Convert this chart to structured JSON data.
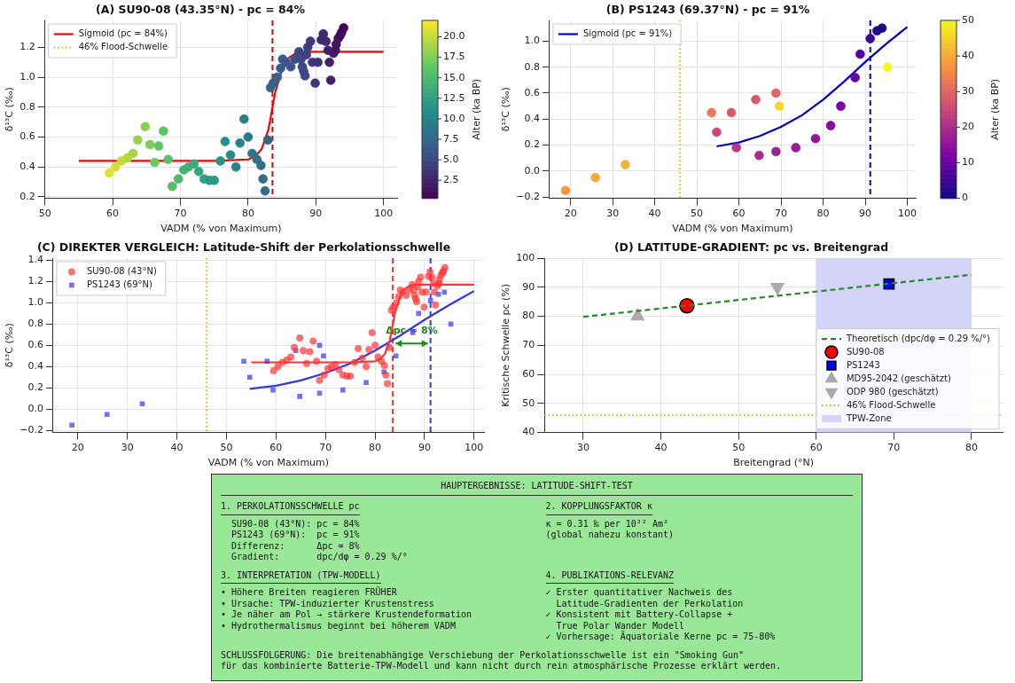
{
  "chart_data": [
    {
      "type": "scatter",
      "title": "(A) SU90-08 (43.35°N) - pc = 84%",
      "xlabel": "VADM (% von Maximum)",
      "ylabel": "δ¹³C (‰)",
      "clabel": "Alter (ka BP)",
      "xlim": [
        50,
        102
      ],
      "xticks": [
        50,
        60,
        70,
        80,
        90,
        100
      ],
      "ylim": [
        0.19,
        1.38
      ],
      "yticks": [
        0.2,
        0.4,
        0.6,
        0.8,
        {
          "value": 1,
          "label": "1.0"
        },
        1.2
      ],
      "clim": [
        0.3,
        22
      ],
      "cticks": [
        2.5,
        {
          "value": 5,
          "label": "5.0"
        },
        7.5,
        {
          "value": 10,
          "label": "10.0"
        },
        12.5,
        {
          "value": 15,
          "label": "15.0"
        },
        17.5,
        {
          "value": 20,
          "label": "20.0"
        }
      ],
      "grid": true,
      "legend": "top left",
      "series": [
        {
          "type": "scatter",
          "marker": "circle",
          "x": [
            59.5,
            60.4,
            61.3,
            62.2,
            63.0,
            63.7,
            64.8,
            65.5,
            66.2,
            66.8,
            67.5,
            68.2,
            68.8,
            69.7,
            70.5,
            71.2,
            72.0,
            72.7,
            73.5,
            74.3,
            75.0,
            75.9,
            76.6,
            77.4,
            78.2,
            78.8,
            79.4,
            80.0,
            80.6,
            81.3,
            81.9,
            82.2,
            82.5,
            82.9,
            83.3,
            83.7,
            84.3,
            84.8,
            85.1,
            85.6,
            86.3,
            86.9,
            87.5,
            87.8,
            88.0,
            88.2,
            88.4,
            88.6,
            88.8,
            89.2,
            89.5,
            89.9,
            90.3,
            90.8,
            91.1,
            91.5,
            91.8,
            92.0,
            92.2,
            92.6,
            92.9,
            93.0,
            93.3,
            93.6,
            93.8,
            94.1
          ],
          "values": [
            0.36,
            0.4,
            0.44,
            0.46,
            0.49,
            0.58,
            0.67,
            0.55,
            0.43,
            0.54,
            0.64,
            0.45,
            0.27,
            0.32,
            0.38,
            0.4,
            0.42,
            0.37,
            0.32,
            0.31,
            0.31,
            0.44,
            0.57,
            0.48,
            0.4,
            0.56,
            0.72,
            0.6,
            0.49,
            0.45,
            0.41,
            0.32,
            0.24,
            0.58,
            0.93,
            0.96,
            1.0,
            1.06,
            1.12,
            1.1,
            1.07,
            1.12,
            1.17,
            1.12,
            1.07,
            1.04,
            1.01,
            1.15,
            1.2,
            1.24,
            1.1,
            0.96,
            1.1,
            1.25,
            1.29,
            1.24,
            1.18,
            1.1,
            0.98,
            1.16,
            1.18,
            1.22,
            1.26,
            1.28,
            1.3,
            1.33
          ],
          "cvalues": [
            21,
            20.5,
            20,
            19.5,
            19,
            18.5,
            18,
            17.5,
            17,
            16.5,
            16,
            16,
            15.5,
            15,
            14.5,
            14,
            13.5,
            13,
            12.5,
            12,
            12,
            11.5,
            11,
            10.5,
            10,
            10,
            9.5,
            9,
            9,
            8.5,
            8,
            8,
            8,
            7.5,
            7.5,
            7,
            7,
            6.5,
            6.5,
            6,
            6,
            5.5,
            5,
            5,
            5,
            5,
            5,
            4.5,
            4.5,
            4,
            4,
            4,
            3.5,
            3,
            3,
            3,
            2.5,
            2.5,
            2.5,
            2,
            2,
            1.5,
            1.5,
            1,
            1,
            0.5
          ],
          "colors": [
            "#e0e130",
            "#d1df36",
            "#c2dc3b",
            "#b4d941",
            "#a5d647",
            "#96d44c",
            "#88d152",
            "#79ce58",
            "#6acb5d",
            "#5dc863",
            "#58c366",
            "#58c366",
            "#52be6a",
            "#4cb96e",
            "#47b472",
            "#41ae76",
            "#3ba97a",
            "#36a47e",
            "#309f82",
            "#2b9a85",
            "#2b9a85",
            "#259589",
            "#228f8c",
            "#24898c",
            "#27848c",
            "#27848c",
            "#297e8c",
            "#2b788c",
            "#2b788c",
            "#2e728c",
            "#306c8b",
            "#306c8b",
            "#306c8b",
            "#32678b",
            "#32678b",
            "#35618b",
            "#35618b",
            "#375b8b",
            "#375b8b",
            "#3a558b",
            "#3a558b",
            "#3b4f89",
            "#3c4784",
            "#3c4784",
            "#3c4784",
            "#3c4784",
            "#3c4784",
            "#3d407f",
            "#3d407f",
            "#3e387a",
            "#3e387a",
            "#3e387a",
            "#3f3174",
            "#40296f",
            "#40296f",
            "#40296f",
            "#40226a",
            "#40226a",
            "#40226a",
            "#411a65",
            "#411a65",
            "#421360",
            "#421360",
            "#430b5b",
            "#430b5b",
            "#440456"
          ]
        },
        {
          "type": "line",
          "name": "Sigmoid (pc = 84%)",
          "color": "#ff0000",
          "x": [
            55,
            75,
            80,
            81,
            82,
            83,
            83.6,
            84,
            85,
            86,
            87,
            88,
            100
          ],
          "values": [
            0.44,
            0.44,
            0.45,
            0.47,
            0.52,
            0.65,
            0.8,
            0.9,
            1.05,
            1.13,
            1.16,
            1.17,
            1.17
          ]
        }
      ],
      "ref_lines": [
        {
          "axis": "x",
          "value": 83.6,
          "color": "#dd0000",
          "line_style": "dashed"
        }
      ],
      "annotations": [
        "46% Flood-Schwelle"
      ]
    },
    {
      "type": "scatter",
      "title": "(B) PS1243 (69.37°N) - pc = 91%",
      "xlabel": "VADM (% von Maximum)",
      "ylabel": "δ¹³C (‰)",
      "clabel": "Alter (ka BP)",
      "xlim": [
        15,
        102
      ],
      "xticks": [
        20,
        30,
        40,
        50,
        60,
        70,
        80,
        90,
        100
      ],
      "ylim": [
        -0.21,
        1.16
      ],
      "yticks": [
        {
          "value": -0.2,
          "label": "−0.2"
        },
        {
          "value": 0,
          "label": "0.0"
        },
        0.2,
        0.4,
        0.6,
        0.8,
        {
          "value": 1,
          "label": "1.0"
        }
      ],
      "clim": [
        0,
        50
      ],
      "cticks": [
        0,
        10,
        20,
        30,
        40,
        50
      ],
      "grid": true,
      "legend": "top left",
      "series": [
        {
          "type": "scatter",
          "marker": "circle",
          "x": [
            18.8,
            25.9,
            33.0,
            53.5,
            54.7,
            58.2,
            59.4,
            64.0,
            64.8,
            68.8,
            68.8,
            69.6,
            73.5,
            78.2,
            81.8,
            84.2,
            87.6,
            88.8,
            91.2,
            92.8,
            94.0,
            95.3
          ],
          "values": [
            -0.15,
            -0.05,
            0.05,
            0.45,
            0.3,
            0.45,
            0.18,
            0.55,
            0.12,
            0.6,
            0.15,
            0.5,
            0.18,
            0.25,
            0.35,
            0.5,
            0.72,
            0.9,
            1.02,
            1.08,
            1.1,
            0.8
          ],
          "cvalues": [
            38,
            40,
            41,
            33,
            25,
            28,
            22,
            28,
            20,
            30,
            18,
            46,
            17,
            16,
            14,
            12,
            10,
            8,
            5,
            3,
            2,
            50
          ],
          "colors": [
            "#f8993f",
            "#f6a93a",
            "#f6b137",
            "#e87954",
            "#cc4778",
            "#d75a6b",
            "#b93784",
            "#d75a6b",
            "#ad2c8b",
            "#de6662",
            "#a02193",
            "#f3d92b",
            "#9a1b97",
            "#94169b",
            "#870ba2",
            "#7903a7",
            "#6704a1",
            "#55059c",
            "#3a0694",
            "#28078f",
            "#1f078c",
            "#f0f921"
          ]
        },
        {
          "type": "line",
          "name": "Sigmoid (pc = 91%)",
          "color": "#0000dd",
          "x": [
            54.7,
            60,
            65,
            70,
            75,
            80,
            85,
            90,
            95,
            100
          ],
          "values": [
            0.19,
            0.22,
            0.27,
            0.34,
            0.43,
            0.55,
            0.69,
            0.84,
            0.98,
            1.11
          ]
        }
      ],
      "ref_lines": [
        {
          "axis": "x",
          "value": 91.2,
          "color": "#0000dd",
          "line_style": "dashed"
        },
        {
          "axis": "x",
          "value": 46,
          "color": "#ffa500",
          "line_style": "dotted"
        }
      ]
    },
    {
      "type": "scatter",
      "title": "(C) DIREKTER VERGLEICH: Latitude-Shift der Perkolationsschwelle",
      "xlabel": "VADM (% von Maximum)",
      "ylabel": "δ¹³C (‰)",
      "xlim": [
        15,
        102
      ],
      "xticks": [
        20,
        30,
        40,
        50,
        60,
        70,
        80,
        90,
        100
      ],
      "ylim": [
        -0.22,
        1.42
      ],
      "yticks": [
        {
          "value": -0.2,
          "label": "−0.2"
        },
        {
          "value": 0,
          "label": "0.0"
        },
        0.2,
        0.4,
        0.6,
        0.8,
        {
          "value": 1,
          "label": "1.0"
        },
        1.2,
        1.4
      ],
      "grid": true,
      "legend": "top left",
      "series": [
        {
          "type": "scatter",
          "name": "SU90-08 (43°N)",
          "color": "#ff3333",
          "marker": "circle",
          "x": [
            59.5,
            60.4,
            61.3,
            62.2,
            63.0,
            63.7,
            64.8,
            65.5,
            66.2,
            66.8,
            67.5,
            68.2,
            68.8,
            69.7,
            70.5,
            71.2,
            72.0,
            72.7,
            73.5,
            74.3,
            75.0,
            75.9,
            76.6,
            77.4,
            78.2,
            78.8,
            79.4,
            80.0,
            80.6,
            81.3,
            81.9,
            82.2,
            82.5,
            82.9,
            83.3,
            83.7,
            84.3,
            84.8,
            85.1,
            85.6,
            86.3,
            86.9,
            87.5,
            87.8,
            88.0,
            88.2,
            88.4,
            88.6,
            88.8,
            89.2,
            89.5,
            89.9,
            90.3,
            90.8,
            91.1,
            91.5,
            91.8,
            92.0,
            92.2,
            92.6,
            92.9,
            93.0,
            93.3,
            93.6,
            93.8,
            94.1
          ],
          "values": [
            0.36,
            0.4,
            0.44,
            0.46,
            0.49,
            0.58,
            0.67,
            0.55,
            0.43,
            0.54,
            0.64,
            0.45,
            0.27,
            0.32,
            0.38,
            0.4,
            0.42,
            0.37,
            0.32,
            0.31,
            0.31,
            0.44,
            0.57,
            0.48,
            0.4,
            0.56,
            0.72,
            0.6,
            0.49,
            0.45,
            0.41,
            0.32,
            0.24,
            0.58,
            0.93,
            0.96,
            1.0,
            1.06,
            1.12,
            1.1,
            1.07,
            1.12,
            1.17,
            1.12,
            1.07,
            1.04,
            1.01,
            1.15,
            1.2,
            1.24,
            1.1,
            0.96,
            1.1,
            1.25,
            1.29,
            1.24,
            1.18,
            1.1,
            0.98,
            1.16,
            1.18,
            1.22,
            1.26,
            1.28,
            1.3,
            1.33
          ]
        },
        {
          "type": "scatter",
          "name": "PS1243 (69°N)",
          "color": "#3333ff",
          "marker": "square",
          "x": [
            18.8,
            25.9,
            33.0,
            53.5,
            54.7,
            58.2,
            59.4,
            64.0,
            64.8,
            68.8,
            68.8,
            69.6,
            73.5,
            78.2,
            81.8,
            84.2,
            87.6,
            88.8,
            91.2,
            92.8,
            94.0,
            95.3
          ],
          "values": [
            -0.15,
            -0.05,
            0.05,
            0.45,
            0.3,
            0.45,
            0.18,
            0.55,
            0.12,
            0.6,
            0.15,
            0.5,
            0.18,
            0.25,
            0.35,
            0.5,
            0.72,
            0.9,
            1.02,
            1.08,
            1.1,
            0.8
          ]
        },
        {
          "type": "line",
          "color": "#ff3333",
          "x": [
            55,
            75,
            80,
            81,
            82,
            83,
            83.6,
            84,
            85,
            86,
            87,
            88,
            100
          ],
          "values": [
            0.44,
            0.44,
            0.45,
            0.47,
            0.52,
            0.65,
            0.8,
            0.9,
            1.05,
            1.13,
            1.16,
            1.17,
            1.17
          ]
        },
        {
          "type": "line",
          "color": "#3333ff",
          "x": [
            54.7,
            60,
            65,
            70,
            75,
            80,
            85,
            90,
            95,
            100
          ],
          "values": [
            0.19,
            0.22,
            0.27,
            0.34,
            0.43,
            0.55,
            0.69,
            0.84,
            0.98,
            1.11
          ]
        }
      ],
      "ref_lines": [
        {
          "axis": "x",
          "value": 83.6,
          "color": "#dd3333",
          "line_style": "dashed"
        },
        {
          "axis": "x",
          "value": 91.2,
          "color": "#3333ff",
          "line_style": "dashed"
        },
        {
          "axis": "x",
          "value": 46,
          "color": "#ffa500",
          "line_style": "dotted"
        }
      ],
      "annotations": [
        "Δpc = 8%"
      ]
    },
    {
      "type": "scatter",
      "title": "(D) LATITUDE-GRADIENT: pc vs. Breitengrad",
      "xlabel": "Breitengrad (°N)",
      "ylabel": "Kritische Schwelle pc (%)",
      "xlim": [
        25,
        84
      ],
      "xticks": [
        30,
        40,
        50,
        60,
        70,
        80
      ],
      "ylim": [
        40,
        100
      ],
      "yticks": [
        40,
        50,
        60,
        70,
        80,
        90,
        100
      ],
      "grid": true,
      "legend": "bottom right",
      "series": [
        {
          "type": "line",
          "name": "Theoretisch (dpc/dφ = 0.29 %/°)",
          "color": "#228b22",
          "line_style": "dashed",
          "x": [
            30,
            80
          ],
          "values": [
            79.8,
            94.3
          ]
        },
        {
          "type": "scatter",
          "name": "SU90-08",
          "color": "#ff0000",
          "marker": "circle",
          "x": [
            43.35
          ],
          "values": [
            83.6
          ]
        },
        {
          "type": "scatter",
          "name": "PS1243",
          "color": "#0000ff",
          "marker": "square",
          "x": [
            69.37
          ],
          "values": [
            91.1
          ]
        },
        {
          "type": "scatter",
          "name": "MD95-2042 (geschätzt)",
          "color": "#aaaaaa",
          "marker": "triangle",
          "x": [
            37
          ],
          "values": [
            80
          ]
        },
        {
          "type": "scatter",
          "name": "ODP 980 (geschätzt)",
          "color": "#aaaaaa",
          "marker": "triangle-down",
          "x": [
            55
          ],
          "values": [
            90
          ]
        }
      ],
      "ref_lines": [
        {
          "axis": "y",
          "value": 46,
          "label": "46% Flood-Schwelle",
          "color": "#ffa500",
          "line_style": "dotted"
        }
      ],
      "bands": [
        {
          "axis": "x",
          "from": 60,
          "to": 80,
          "label": "TPW-Zone",
          "color": "#d4d4fb"
        }
      ]
    },
    {
      "type": "other",
      "title": "HAUPTERGEBNISSE: LATITUDE-SHIFT-TEST",
      "annotations": [
        "1. PERKOLATIONSSCHWELLE pc",
        "SU90-08 (43°N): pc = 84%",
        "PS1243 (69°N):  pc = 91%",
        "Differenz:      Δpc = 8%",
        "Gradient:       dpc/dφ = 0.29 %/°",
        "2. KOPPLUNGSFAKTOR κ",
        "κ = 0.31 ‰ per 10²² Am²",
        "(global nahezu konstant)",
        "3. INTERPRETATION (TPW-MODELL)",
        "• Höhere Breiten reagieren FRÜHER",
        "• Ursache: TPW-induzierter Krustenstress",
        "• Je näher am Pol → stärkere Krustendeformation",
        "• Hydrothermalismus beginnt bei höherem VADM",
        "4. PUBLIKATIONS-RELEVANZ",
        "✓ Erster quantitativer Nachweis des",
        "  Latitude-Gradienten der Perkolation",
        "✓ Konsistent mit Battery-Collapse +",
        "  True Polar Wander Modell",
        "✓ Vorhersage: Äquatoriale Kerne pc = 75-80%",
        "SCHLUSSFOLGERUNG: Die breitenabhängige Verschiebung der Perkolationsschwelle ist ein \"Smoking Gun\"",
        "für das kombinierte Batterie-TPW-Modell und kann nicht durch rein atmosphärische Prozesse erklärt werden."
      ]
    }
  ]
}
